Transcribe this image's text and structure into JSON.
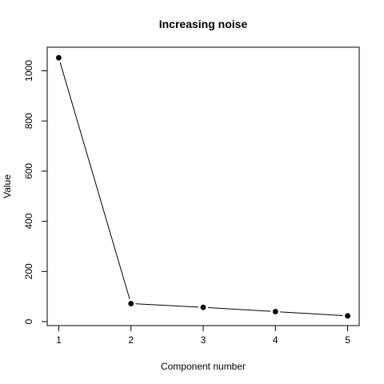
{
  "chart_data": {
    "type": "line",
    "title": "Increasing noise",
    "xlabel": "Component number",
    "ylabel": "Value",
    "x": [
      1,
      2,
      3,
      4,
      5
    ],
    "series": [
      {
        "values": [
          1052,
          72,
          57,
          40,
          23
        ]
      }
    ],
    "xticks": [
      1,
      2,
      3,
      4,
      5
    ],
    "yticks": [
      0,
      200,
      400,
      600,
      800,
      1000
    ],
    "xlim": [
      0.84,
      5.16
    ],
    "ylim": [
      -15.8,
      1094
    ],
    "grid": false,
    "markers": "filled-circle",
    "colors": {
      "line": "#000000",
      "marker": "#000000",
      "background": "#ffffff"
    }
  }
}
